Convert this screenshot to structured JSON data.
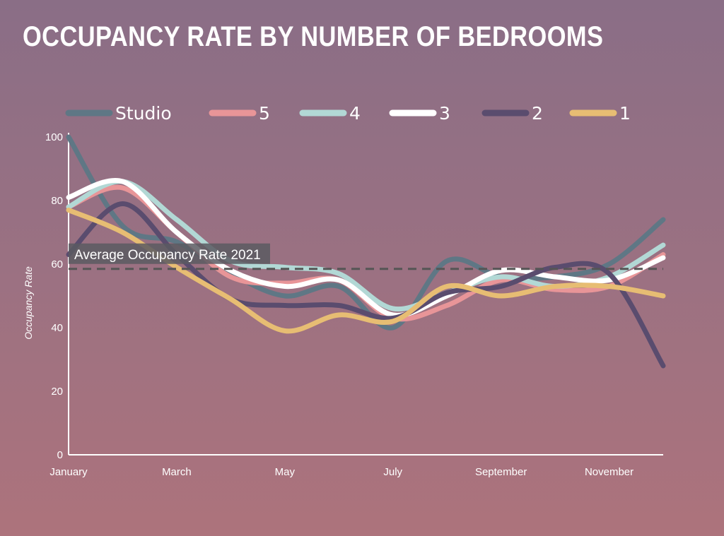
{
  "title": "OCCUPANCY RATE BY NUMBER OF BEDROOMS",
  "chart_data": {
    "type": "line",
    "title": "OCCUPANCY RATE BY NUMBER OF BEDROOMS",
    "ylabel": "Occupancy Rate",
    "xlabel": "",
    "x": [
      1,
      2,
      3,
      4,
      5,
      6,
      7,
      8,
      9,
      10,
      11,
      12
    ],
    "xlim": [
      1,
      12
    ],
    "ylim": [
      0,
      100
    ],
    "xticks": [
      {
        "x": 1,
        "label": "January"
      },
      {
        "x": 3,
        "label": "March"
      },
      {
        "x": 5,
        "label": "May"
      },
      {
        "x": 7,
        "label": "July"
      },
      {
        "x": 9,
        "label": "September"
      },
      {
        "x": 11,
        "label": "November"
      }
    ],
    "yticks": [
      0,
      20,
      40,
      60,
      80,
      100
    ],
    "grid": false,
    "legend_position": "top",
    "series": [
      {
        "name": "Studio",
        "color": "#5f7785",
        "values": [
          100,
          72,
          67,
          57,
          50,
          53,
          40,
          61,
          56,
          56,
          60,
          74
        ]
      },
      {
        "name": "5",
        "color": "#e89598",
        "values": [
          78,
          84,
          70,
          56,
          54,
          55,
          43,
          47,
          55,
          52,
          53,
          63
        ]
      },
      {
        "name": "4",
        "color": "#b2d8d5",
        "values": [
          78,
          86,
          74,
          61,
          59,
          57,
          46,
          51,
          56,
          53,
          56,
          66
        ]
      },
      {
        "name": "3",
        "color": "#ffffff",
        "values": [
          81,
          86,
          70,
          58,
          53,
          55,
          44,
          50,
          58,
          56,
          55,
          62
        ]
      },
      {
        "name": "2",
        "color": "#5a4c6e",
        "values": [
          63,
          79,
          63,
          49,
          47,
          47,
          43,
          51,
          53,
          59,
          57,
          28
        ]
      },
      {
        "name": "1",
        "color": "#e7bd73",
        "values": [
          77,
          70,
          59,
          49,
          39,
          44,
          42,
          53,
          50,
          53,
          53,
          50
        ]
      }
    ],
    "annotations": [
      {
        "type": "hline",
        "y": 58.5,
        "label": "Average Occupancy Rate 2021",
        "color": "#555555",
        "style": "dashed"
      }
    ]
  }
}
